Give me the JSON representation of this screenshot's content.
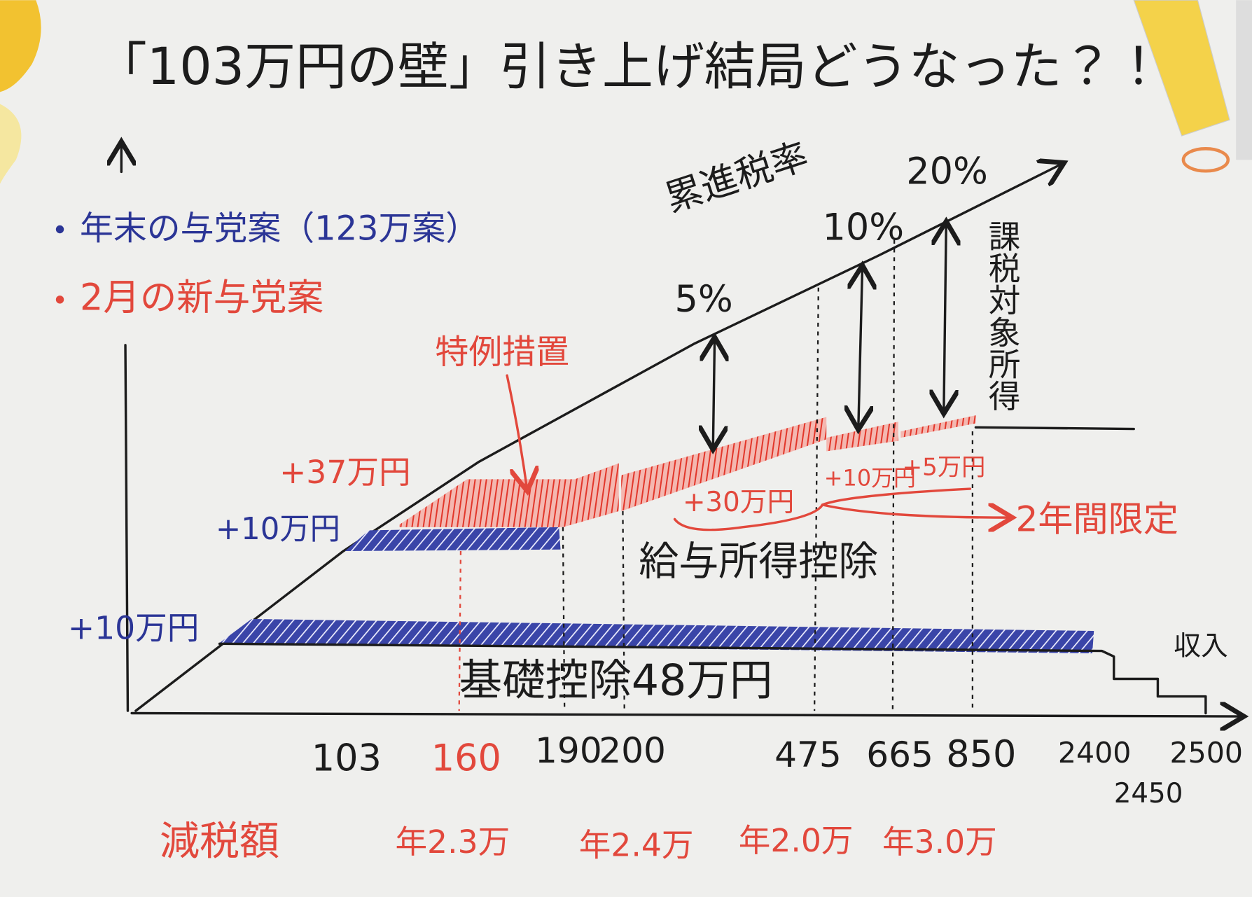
{
  "title": "「103万円の壁」引き上げ結局どうなった？！",
  "legend": [
    "年末の与党案（123万案）",
    "2月の新与党案"
  ],
  "annotations": {
    "progressive_rate": "累進税率",
    "rate_5": "5%",
    "rate_10": "10%",
    "rate_20": "20%",
    "taxable_income": "課税対象所得",
    "special_measure": "特例措置",
    "plus_37": "+37万円",
    "plus_10_upper": "+10万円",
    "plus_30": "+30万円",
    "plus_10_red": "+10万円",
    "plus_5": "+5万円",
    "two_years": "2年間限定",
    "salary_deduction": "給与所得控除",
    "plus_10_lower": "+10万円",
    "basic_deduction": "基礎控除48万円",
    "income": "収入"
  },
  "x_axis": [
    "103",
    "160",
    "190",
    "200",
    "475",
    "665",
    "850",
    "2400",
    "2450",
    "2500"
  ],
  "tax_cut": {
    "label": "減税額",
    "amounts": [
      "年2.3万",
      "年2.4万",
      "年2.0万",
      "年3.0万"
    ]
  }
}
